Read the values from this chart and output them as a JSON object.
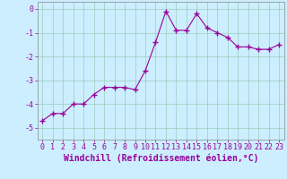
{
  "x": [
    0,
    1,
    2,
    3,
    4,
    5,
    6,
    7,
    8,
    9,
    10,
    11,
    12,
    13,
    14,
    15,
    16,
    17,
    18,
    19,
    20,
    21,
    22,
    23
  ],
  "y": [
    -4.7,
    -4.4,
    -4.4,
    -4.0,
    -4.0,
    -3.6,
    -3.3,
    -3.3,
    -3.3,
    -3.4,
    -2.6,
    -1.4,
    -0.1,
    -0.9,
    -0.9,
    -0.2,
    -0.8,
    -1.0,
    -1.2,
    -1.6,
    -1.6,
    -1.7,
    -1.7,
    -1.5
  ],
  "line_color": "#990099",
  "marker": "+",
  "markersize": 4,
  "linewidth": 0.8,
  "background_color": "#cceeff",
  "grid_color": "#99ccbb",
  "xlabel": "Windchill (Refroidissement éolien,°C)",
  "xlabel_fontsize": 7,
  "tick_fontsize": 6,
  "xlim": [
    -0.5,
    23.5
  ],
  "ylim": [
    -5.5,
    0.3
  ],
  "yticks": [
    0,
    -1,
    -2,
    -3,
    -4,
    -5
  ],
  "xticks": [
    0,
    1,
    2,
    3,
    4,
    5,
    6,
    7,
    8,
    9,
    10,
    11,
    12,
    13,
    14,
    15,
    16,
    17,
    18,
    19,
    20,
    21,
    22,
    23
  ]
}
